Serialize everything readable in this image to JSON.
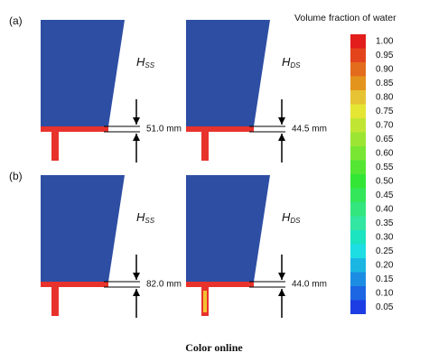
{
  "panels": [
    {
      "label": "(a)",
      "left": {
        "symbol": "H",
        "subscript": "SS",
        "dimension": "51.0 mm"
      },
      "right": {
        "symbol": "H",
        "subscript": "DS",
        "dimension": "44.5 mm"
      }
    },
    {
      "label": "(b)",
      "left": {
        "symbol": "H",
        "subscript": "SS",
        "dimension": "82.0 mm"
      },
      "right": {
        "symbol": "H",
        "subscript": "DS",
        "dimension": "44.0 mm"
      }
    }
  ],
  "colorbar": {
    "title": "Volume fraction of water",
    "ticks": [
      "1.00",
      "0.95",
      "0.90",
      "0.85",
      "0.80",
      "0.75",
      "0.70",
      "0.65",
      "0.60",
      "0.55",
      "0.50",
      "0.45",
      "0.40",
      "0.35",
      "0.30",
      "0.25",
      "0.20",
      "0.15",
      "0.10",
      "0.05"
    ]
  },
  "caption": "Color online"
}
